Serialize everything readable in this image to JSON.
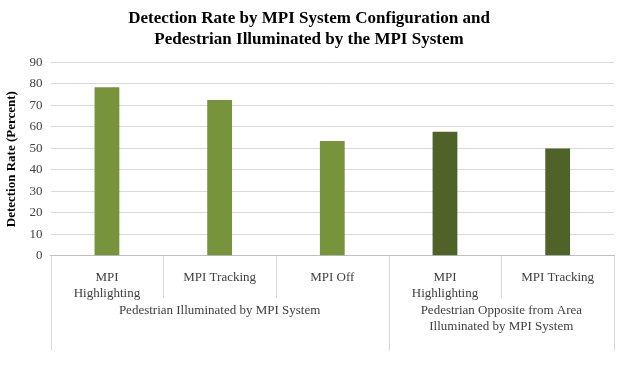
{
  "chart_data": {
    "type": "bar",
    "title": "Detection Rate by MPI System Configuration and Pedestrian Illuminated by the MPI System",
    "y_label": "Detection Rate (Percent)",
    "categories": [
      "MPI Highlighting",
      "MPI Tracking",
      "MPI Off",
      "MPI Highlighting",
      "MPI Tracking"
    ],
    "groups": [
      {
        "label": "Pedestrian Illuminated by MPI System",
        "categories": [
          "MPI Highlighting",
          "MPI Tracking",
          "MPI Off"
        ]
      },
      {
        "label": "Pedestrian Opposite from Area Illuminated by MPI System",
        "categories": [
          "MPI Highlighting",
          "MPI Tracking"
        ]
      }
    ],
    "values": [
      78.5,
      72.5,
      53.5,
      57.7,
      50
    ],
    "colors": [
      "#77933C",
      "#77933C",
      "#77933C",
      "#4F6228",
      "#4F6228"
    ],
    "ylim": [
      0,
      90
    ],
    "yticks": [
      0,
      10,
      20,
      30,
      40,
      50,
      60,
      70,
      80,
      90
    ],
    "grid": true
  }
}
